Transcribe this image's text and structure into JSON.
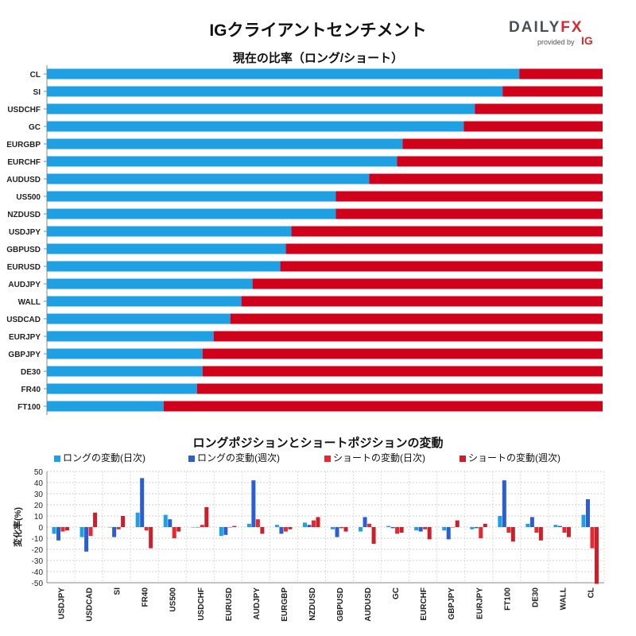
{
  "title": "IGクライアントセンチメント",
  "logo": {
    "daily": "DAILY",
    "fx": "FX",
    "provided_by": "provided by",
    "ig": "IG"
  },
  "colors": {
    "long": "#1fa0e2",
    "short": "#d0021b",
    "long_weekly": "#2b5fd1",
    "short_weekly": "#cc1f2b"
  },
  "chart_data": [
    {
      "type": "bar",
      "orientation": "horizontal",
      "stacked": true,
      "title": "現在の比率（ロング/ショート）",
      "categories": [
        "CL",
        "SI",
        "USDCHF",
        "GC",
        "EURGBP",
        "EURCHF",
        "AUDUSD",
        "US500",
        "NZDUSD",
        "USDJPY",
        "GBPUSD",
        "EURUSD",
        "AUDJPY",
        "WALL",
        "USDCAD",
        "EURJPY",
        "GBPJPY",
        "DE30",
        "FR40",
        "FT100"
      ],
      "series": [
        {
          "name": "ロング",
          "values": [
            85,
            82,
            77,
            75,
            64,
            63,
            58,
            52,
            52,
            44,
            43,
            42,
            37,
            35,
            33,
            30,
            28,
            28,
            27,
            21
          ]
        },
        {
          "name": "ショート",
          "values": [
            15,
            18,
            23,
            25,
            36,
            37,
            42,
            48,
            48,
            56,
            57,
            58,
            63,
            65,
            67,
            70,
            72,
            72,
            73,
            79
          ]
        }
      ],
      "xlim": [
        0,
        100
      ]
    },
    {
      "type": "bar",
      "title": "ロングポジションとショートポジションの変動",
      "ylabel": "変化率(%)",
      "ylim": [
        -50,
        50
      ],
      "yticks": [
        50,
        40,
        30,
        20,
        10,
        0,
        -10,
        -20,
        -30,
        -40,
        -50
      ],
      "grid": true,
      "legend": "top",
      "categories": [
        "USDJPY",
        "USDCAD",
        "SI",
        "FR40",
        "US500",
        "USDCHF",
        "EURUSD",
        "AUDJPY",
        "EURGBP",
        "NZDUSD",
        "GBPUSD",
        "AUDUSD",
        "GC",
        "EURCHF",
        "GBPJPY",
        "EURJPY",
        "FT100",
        "DE30",
        "WALL",
        "CL"
      ],
      "series": [
        {
          "name": "ロングの変動(日次)",
          "values": [
            -6,
            -9,
            0,
            13,
            11,
            0,
            -8,
            3,
            2,
            4,
            -2,
            -4,
            1,
            -3,
            -3,
            -2,
            10,
            3,
            2,
            11
          ]
        },
        {
          "name": "ロングの変動(週次)",
          "values": [
            -12,
            -22,
            -9,
            44,
            7,
            0,
            -7,
            42,
            -6,
            2,
            -9,
            9,
            -1,
            -4,
            -11,
            -1,
            42,
            9,
            1,
            25
          ]
        },
        {
          "name": "ショートの変動(日次)",
          "values": [
            -4,
            -8,
            -2,
            -3,
            -10,
            2,
            0,
            7,
            -4,
            6,
            -1,
            3,
            -6,
            -2,
            0,
            -10,
            -5,
            -5,
            -5,
            -19
          ]
        },
        {
          "name": "ショートの変動(週次)",
          "values": [
            -3,
            13,
            10,
            -19,
            -4,
            18,
            1,
            -6,
            -2,
            9,
            -4,
            -15,
            -5,
            -11,
            6,
            3,
            -13,
            -12,
            -9,
            -51
          ]
        }
      ]
    }
  ]
}
